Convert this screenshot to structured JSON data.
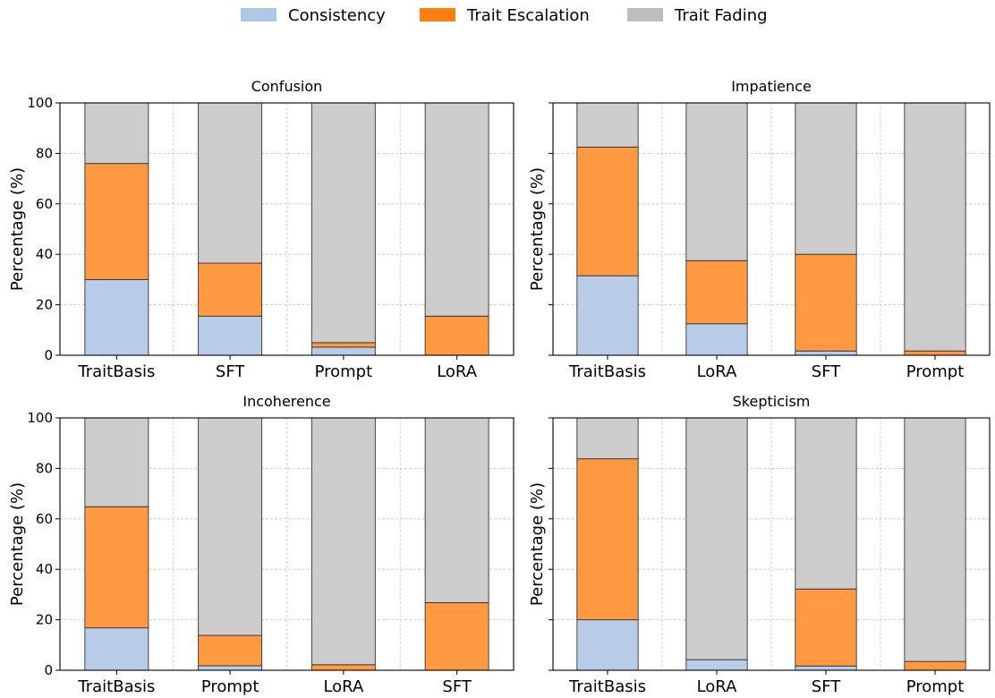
{
  "legend": {
    "placement": "top-center",
    "items": [
      {
        "label": "Consistency",
        "color": "#aec7e8"
      },
      {
        "label": "Trait Escalation",
        "color": "#ff7f0e"
      },
      {
        "label": "Trait Fading",
        "color": "#bdbdbd"
      }
    ]
  },
  "chart_data": [
    {
      "type": "bar",
      "stacked": true,
      "title": "Confusion",
      "ylabel": "Percentage (%)",
      "ylim": [
        0,
        100
      ],
      "yticks": [
        "0",
        "20",
        "40",
        "60",
        "80",
        "100"
      ],
      "grid": "y",
      "categories": [
        "TraitBasis",
        "SFT",
        "Prompt",
        "LoRA"
      ],
      "series": [
        {
          "name": "Consistency",
          "values": [
            30,
            15.5,
            3.2,
            0
          ]
        },
        {
          "name": "Trait Escalation",
          "values": [
            46,
            21,
            1.8,
            15.5
          ]
        },
        {
          "name": "Trait Fading",
          "values": [
            24,
            63.5,
            95,
            84.5
          ]
        }
      ]
    },
    {
      "type": "bar",
      "stacked": true,
      "title": "Impatience",
      "ylabel": "Percentage (%)",
      "ylim": [
        0,
        100
      ],
      "yticks": [
        "",
        "",
        "",
        "",
        "",
        ""
      ],
      "grid": "y",
      "categories": [
        "TraitBasis",
        "LoRA",
        "SFT",
        "Prompt"
      ],
      "series": [
        {
          "name": "Consistency",
          "values": [
            31.5,
            12.5,
            1.7,
            0
          ]
        },
        {
          "name": "Trait Escalation",
          "values": [
            51,
            25,
            38.3,
            1.7
          ]
        },
        {
          "name": "Trait Fading",
          "values": [
            17.5,
            62.5,
            60,
            98.3
          ]
        }
      ]
    },
    {
      "type": "bar",
      "stacked": true,
      "title": "Incoherence",
      "ylabel": "Percentage (%)",
      "ylim": [
        0,
        100
      ],
      "yticks": [
        "0",
        "20",
        "40",
        "60",
        "80",
        "100"
      ],
      "grid": "y",
      "categories": [
        "TraitBasis",
        "Prompt",
        "LoRA",
        "SFT"
      ],
      "series": [
        {
          "name": "Consistency",
          "values": [
            16.8,
            1.8,
            0,
            0
          ]
        },
        {
          "name": "Trait Escalation",
          "values": [
            48,
            12,
            2.2,
            26.8
          ]
        },
        {
          "name": "Trait Fading",
          "values": [
            35.2,
            86.2,
            97.8,
            73.2
          ]
        }
      ]
    },
    {
      "type": "bar",
      "stacked": true,
      "title": "Skepticism",
      "ylabel": "Percentage (%)",
      "ylim": [
        0,
        100
      ],
      "yticks": [
        "",
        "",
        "",
        "",
        "",
        ""
      ],
      "grid": "y",
      "categories": [
        "TraitBasis",
        "LoRA",
        "SFT",
        "Prompt"
      ],
      "series": [
        {
          "name": "Consistency",
          "values": [
            20,
            4.2,
            1.7,
            0
          ]
        },
        {
          "name": "Trait Escalation",
          "values": [
            63.8,
            0,
            30.5,
            3.5
          ]
        },
        {
          "name": "Trait Fading",
          "values": [
            16.2,
            95.8,
            67.8,
            96.5
          ]
        }
      ]
    }
  ]
}
